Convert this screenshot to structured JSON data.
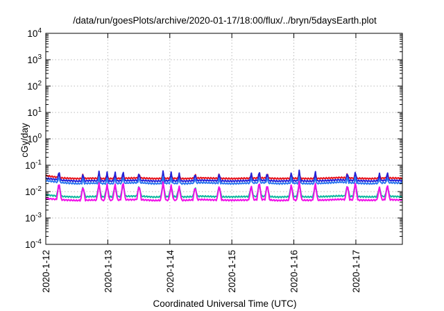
{
  "chart_data": {
    "type": "line",
    "title": "/data/run/goesPlots/archive/2020-01-17/18:00/flux/../bryn/5daysEarth.plot",
    "xlabel": "Coordinated Universal Time (UTC)",
    "ylabel": "cGy/day",
    "yscale": "log",
    "ylim": [
      0.0001,
      10000
    ],
    "xlim": [
      "2020-01-12",
      "2020-01-17 18:00"
    ],
    "grid": true,
    "legend": "none",
    "x_ticks": [
      "2020-1-12",
      "2020-1-13",
      "2020-1-14",
      "2020-1-15",
      "2020-1-16",
      "2020-1-17"
    ],
    "y_ticks": [
      {
        "base": "10",
        "exp": "-4"
      },
      {
        "base": "10",
        "exp": "-3"
      },
      {
        "base": "10",
        "exp": "-2"
      },
      {
        "base": "10",
        "exp": "-1"
      },
      {
        "base": "10",
        "exp": "0"
      },
      {
        "base": "10",
        "exp": "1"
      },
      {
        "base": "10",
        "exp": "2"
      },
      {
        "base": "10",
        "exp": "3"
      },
      {
        "base": "10",
        "exp": "4"
      }
    ],
    "series": [
      {
        "color": "#e8141c",
        "baseline": 0.032,
        "spike_peak": 0.06,
        "points": [
          [
            "2020-01-12 00:00",
            0.04
          ],
          [
            "2020-01-12 06:00",
            0.033
          ],
          [
            "2020-01-12 12:00",
            0.031
          ],
          [
            "2020-01-12 18:00",
            0.032
          ],
          [
            "2020-01-13 00:00",
            0.031
          ],
          [
            "2020-01-13 06:00",
            0.032
          ],
          [
            "2020-01-13 12:00",
            0.033
          ],
          [
            "2020-01-13 18:00",
            0.031
          ],
          [
            "2020-01-14 00:00",
            0.032
          ],
          [
            "2020-01-14 06:00",
            0.031
          ],
          [
            "2020-01-14 12:00",
            0.033
          ],
          [
            "2020-01-14 18:00",
            0.032
          ],
          [
            "2020-01-15 00:00",
            0.031
          ],
          [
            "2020-01-15 06:00",
            0.032
          ],
          [
            "2020-01-15 12:00",
            0.033
          ],
          [
            "2020-01-15 18:00",
            0.031
          ],
          [
            "2020-01-16 00:00",
            0.032
          ],
          [
            "2020-01-16 06:00",
            0.031
          ],
          [
            "2020-01-16 12:00",
            0.032
          ],
          [
            "2020-01-16 18:00",
            0.034
          ],
          [
            "2020-01-17 00:00",
            0.032
          ],
          [
            "2020-01-17 06:00",
            0.031
          ],
          [
            "2020-01-17 12:00",
            0.033
          ],
          [
            "2020-01-17 18:00",
            0.032
          ]
        ]
      },
      {
        "color": "#2222d8",
        "baseline": 0.026,
        "spike_peak": 0.085,
        "points": [
          [
            "2020-01-12 00:00",
            0.032
          ],
          [
            "2020-01-12 06:00",
            0.027
          ],
          [
            "2020-01-12 12:00",
            0.025
          ],
          [
            "2020-01-12 18:00",
            0.026
          ],
          [
            "2020-01-13 00:00",
            0.025
          ],
          [
            "2020-01-13 06:00",
            0.026
          ],
          [
            "2020-01-13 12:00",
            0.027
          ],
          [
            "2020-01-13 18:00",
            0.025
          ],
          [
            "2020-01-14 00:00",
            0.026
          ],
          [
            "2020-01-14 06:00",
            0.025
          ],
          [
            "2020-01-14 12:00",
            0.027
          ],
          [
            "2020-01-14 18:00",
            0.026
          ],
          [
            "2020-01-15 00:00",
            0.025
          ],
          [
            "2020-01-15 06:00",
            0.026
          ],
          [
            "2020-01-15 12:00",
            0.027
          ],
          [
            "2020-01-15 18:00",
            0.025
          ],
          [
            "2020-01-16 00:00",
            0.026
          ],
          [
            "2020-01-16 06:00",
            0.025
          ],
          [
            "2020-01-16 12:00",
            0.026
          ],
          [
            "2020-01-16 18:00",
            0.028
          ],
          [
            "2020-01-17 00:00",
            0.026
          ],
          [
            "2020-01-17 06:00",
            0.025
          ],
          [
            "2020-01-17 12:00",
            0.027
          ],
          [
            "2020-01-17 18:00",
            0.026
          ]
        ]
      },
      {
        "color": "#2e78f0",
        "baseline": 0.021,
        "spike_peak": 0.045,
        "points": [
          [
            "2020-01-12 00:00",
            0.026
          ],
          [
            "2020-01-12 06:00",
            0.022
          ],
          [
            "2020-01-12 12:00",
            0.02
          ],
          [
            "2020-01-12 18:00",
            0.021
          ],
          [
            "2020-01-13 00:00",
            0.02
          ],
          [
            "2020-01-13 06:00",
            0.021
          ],
          [
            "2020-01-13 12:00",
            0.022
          ],
          [
            "2020-01-13 18:00",
            0.02
          ],
          [
            "2020-01-14 00:00",
            0.021
          ],
          [
            "2020-01-14 06:00",
            0.02
          ],
          [
            "2020-01-14 12:00",
            0.022
          ],
          [
            "2020-01-14 18:00",
            0.021
          ],
          [
            "2020-01-15 00:00",
            0.02
          ],
          [
            "2020-01-15 06:00",
            0.021
          ],
          [
            "2020-01-15 12:00",
            0.022
          ],
          [
            "2020-01-15 18:00",
            0.02
          ],
          [
            "2020-01-16 00:00",
            0.021
          ],
          [
            "2020-01-16 06:00",
            0.02
          ],
          [
            "2020-01-16 12:00",
            0.021
          ],
          [
            "2020-01-16 18:00",
            0.023
          ],
          [
            "2020-01-17 00:00",
            0.021
          ],
          [
            "2020-01-17 06:00",
            0.02
          ],
          [
            "2020-01-17 12:00",
            0.022
          ],
          [
            "2020-01-17 18:00",
            0.021
          ]
        ]
      },
      {
        "color": "#10b8a0",
        "baseline": 0.0065,
        "spike_peak": 0.02,
        "points": [
          [
            "2020-01-12 00:00",
            0.0075
          ],
          [
            "2020-01-12 06:00",
            0.0066
          ],
          [
            "2020-01-12 12:00",
            0.0062
          ],
          [
            "2020-01-12 18:00",
            0.0065
          ],
          [
            "2020-01-13 00:00",
            0.0063
          ],
          [
            "2020-01-13 06:00",
            0.0066
          ],
          [
            "2020-01-13 12:00",
            0.0068
          ],
          [
            "2020-01-13 18:00",
            0.0062
          ],
          [
            "2020-01-14 00:00",
            0.0065
          ],
          [
            "2020-01-14 06:00",
            0.0063
          ],
          [
            "2020-01-14 12:00",
            0.0067
          ],
          [
            "2020-01-14 18:00",
            0.0064
          ],
          [
            "2020-01-15 00:00",
            0.0063
          ],
          [
            "2020-01-15 06:00",
            0.0065
          ],
          [
            "2020-01-15 12:00",
            0.0067
          ],
          [
            "2020-01-15 18:00",
            0.0062
          ],
          [
            "2020-01-16 00:00",
            0.0065
          ],
          [
            "2020-01-16 06:00",
            0.0063
          ],
          [
            "2020-01-16 12:00",
            0.0065
          ],
          [
            "2020-01-16 18:00",
            0.0069
          ],
          [
            "2020-01-17 00:00",
            0.0065
          ],
          [
            "2020-01-17 06:00",
            0.0063
          ],
          [
            "2020-01-17 12:00",
            0.0067
          ],
          [
            "2020-01-17 18:00",
            0.0064
          ]
        ]
      },
      {
        "color": "#f010e8",
        "baseline": 0.0048,
        "spike_peak": 0.025,
        "points": [
          [
            "2020-01-12 00:00",
            0.0055
          ],
          [
            "2020-01-12 06:00",
            0.0049
          ],
          [
            "2020-01-12 12:00",
            0.0046
          ],
          [
            "2020-01-12 18:00",
            0.0048
          ],
          [
            "2020-01-13 00:00",
            0.0047
          ],
          [
            "2020-01-13 06:00",
            0.0049
          ],
          [
            "2020-01-13 12:00",
            0.005
          ],
          [
            "2020-01-13 18:00",
            0.0046
          ],
          [
            "2020-01-14 00:00",
            0.0048
          ],
          [
            "2020-01-14 06:00",
            0.0047
          ],
          [
            "2020-01-14 12:00",
            0.005
          ],
          [
            "2020-01-14 18:00",
            0.0048
          ],
          [
            "2020-01-15 00:00",
            0.0047
          ],
          [
            "2020-01-15 06:00",
            0.0048
          ],
          [
            "2020-01-15 12:00",
            0.005
          ],
          [
            "2020-01-15 18:00",
            0.0046
          ],
          [
            "2020-01-16 00:00",
            0.0048
          ],
          [
            "2020-01-16 06:00",
            0.0047
          ],
          [
            "2020-01-16 12:00",
            0.0048
          ],
          [
            "2020-01-16 18:00",
            0.0051
          ],
          [
            "2020-01-17 00:00",
            0.0048
          ],
          [
            "2020-01-17 06:00",
            0.0047
          ],
          [
            "2020-01-17 12:00",
            0.005
          ],
          [
            "2020-01-17 18:00",
            0.0048
          ]
        ]
      }
    ]
  }
}
